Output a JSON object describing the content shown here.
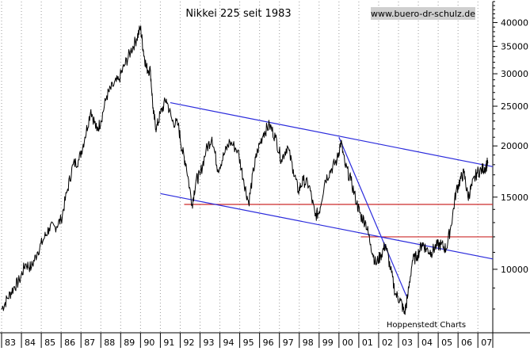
{
  "chart_data": {
    "type": "line",
    "title": "Nikkei 225 seit 1983",
    "watermark": "www.buero-dr-schulz.de",
    "source_label": "Hoppenstedt Charts",
    "xlabel": "",
    "ylabel": "",
    "y_scale": "log",
    "ylim": [
      7000,
      45000
    ],
    "xlim": [
      1983.0,
      2007.75
    ],
    "grid": "vertical-dotted",
    "x_tick_labels": [
      "83",
      "84",
      "85",
      "86",
      "87",
      "88",
      "89",
      "90",
      "91",
      "92",
      "93",
      "94",
      "95",
      "96",
      "97",
      "98",
      "99",
      "00",
      "01",
      "02",
      "03",
      "04",
      "05",
      "06",
      "07"
    ],
    "x_tick_values": [
      1983,
      1984,
      1985,
      1986,
      1987,
      1988,
      1989,
      1990,
      1991,
      1992,
      1993,
      1994,
      1995,
      1996,
      1997,
      1998,
      1999,
      2000,
      2001,
      2002,
      2003,
      2004,
      2005,
      2006,
      2007
    ],
    "y_ticks": [
      10000,
      15000,
      20000,
      25000,
      30000,
      35000,
      40000
    ],
    "y_tick_labels": [
      "10000",
      "15000",
      "20000",
      "25000",
      "30000",
      "35000",
      "40000"
    ],
    "series": [
      {
        "color": "#000000",
        "points": [
          [
            1983.0,
            8000
          ],
          [
            1983.3,
            8500
          ],
          [
            1983.6,
            9000
          ],
          [
            1983.9,
            9400
          ],
          [
            1984.2,
            10300
          ],
          [
            1984.5,
            10100
          ],
          [
            1984.8,
            11000
          ],
          [
            1985.1,
            11800
          ],
          [
            1985.4,
            12600
          ],
          [
            1985.7,
            12700
          ],
          [
            1986.0,
            13200
          ],
          [
            1986.3,
            15500
          ],
          [
            1986.6,
            18000
          ],
          [
            1986.9,
            18500
          ],
          [
            1987.2,
            21000
          ],
          [
            1987.5,
            24500
          ],
          [
            1987.8,
            21800
          ],
          [
            1988.0,
            23000
          ],
          [
            1988.3,
            26500
          ],
          [
            1988.6,
            28000
          ],
          [
            1988.9,
            29000
          ],
          [
            1989.2,
            31500
          ],
          [
            1989.5,
            34000
          ],
          [
            1989.8,
            36500
          ],
          [
            1990.0,
            38900
          ],
          [
            1990.15,
            34000
          ],
          [
            1990.3,
            31000
          ],
          [
            1990.5,
            30500
          ],
          [
            1990.65,
            24000
          ],
          [
            1990.8,
            22000
          ],
          [
            1991.0,
            24000
          ],
          [
            1991.3,
            26000
          ],
          [
            1991.6,
            23000
          ],
          [
            1991.9,
            22500
          ],
          [
            1992.1,
            19500
          ],
          [
            1992.3,
            18000
          ],
          [
            1992.6,
            14400
          ],
          [
            1992.8,
            16500
          ],
          [
            1993.0,
            17000
          ],
          [
            1993.3,
            19500
          ],
          [
            1993.6,
            21000
          ],
          [
            1993.9,
            17500
          ],
          [
            1994.2,
            19000
          ],
          [
            1994.5,
            20500
          ],
          [
            1994.9,
            19500
          ],
          [
            1995.2,
            16500
          ],
          [
            1995.45,
            14500
          ],
          [
            1995.7,
            17500
          ],
          [
            1995.9,
            19500
          ],
          [
            1996.2,
            21500
          ],
          [
            1996.5,
            22500
          ],
          [
            1996.8,
            21000
          ],
          [
            1997.1,
            18500
          ],
          [
            1997.4,
            20000
          ],
          [
            1997.7,
            17500
          ],
          [
            1997.95,
            15500
          ],
          [
            1998.2,
            16500
          ],
          [
            1998.5,
            16000
          ],
          [
            1998.8,
            13500
          ],
          [
            1999.0,
            13800
          ],
          [
            1999.3,
            16500
          ],
          [
            1999.6,
            17500
          ],
          [
            1999.9,
            18500
          ],
          [
            2000.1,
            20500
          ],
          [
            2000.3,
            18000
          ],
          [
            2000.6,
            16500
          ],
          [
            2000.9,
            14500
          ],
          [
            2001.1,
            13500
          ],
          [
            2001.35,
            13000
          ],
          [
            2001.6,
            11500
          ],
          [
            2001.85,
            10300
          ],
          [
            2002.1,
            10800
          ],
          [
            2002.35,
            11500
          ],
          [
            2002.6,
            10000
          ],
          [
            2002.85,
            8700
          ],
          [
            2003.1,
            8400
          ],
          [
            2003.3,
            7800
          ],
          [
            2003.45,
            8500
          ],
          [
            2003.7,
            10500
          ],
          [
            2003.95,
            10800
          ],
          [
            2004.2,
            11600
          ],
          [
            2004.4,
            11200
          ],
          [
            2004.65,
            11000
          ],
          [
            2004.9,
            11400
          ],
          [
            2005.15,
            11500
          ],
          [
            2005.4,
            11200
          ],
          [
            2005.65,
            12800
          ],
          [
            2005.9,
            15500
          ],
          [
            2006.1,
            16500
          ],
          [
            2006.3,
            17200
          ],
          [
            2006.5,
            15000
          ],
          [
            2006.7,
            16000
          ],
          [
            2006.95,
            17200
          ],
          [
            2007.2,
            17500
          ],
          [
            2007.4,
            17800
          ],
          [
            2007.5,
            18200
          ]
        ]
      }
    ],
    "trend_lines": [
      {
        "color": "#2b2bdc",
        "points": [
          [
            1991.5,
            25500
          ],
          [
            2007.75,
            17800
          ]
        ]
      },
      {
        "color": "#2b2bdc",
        "points": [
          [
            1991.0,
            15300
          ],
          [
            2007.75,
            10600
          ]
        ]
      },
      {
        "color": "#2b2bdc",
        "points": [
          [
            2000.0,
            21000
          ],
          [
            2003.4,
            8600
          ]
        ]
      }
    ],
    "support_lines": [
      {
        "color": "#cc2a2a",
        "y": 14400,
        "x_range": [
          1992.2,
          2007.75
        ]
      },
      {
        "color": "#cc2a2a",
        "y": 12000,
        "x_range": [
          2001.1,
          2007.75
        ]
      }
    ]
  }
}
